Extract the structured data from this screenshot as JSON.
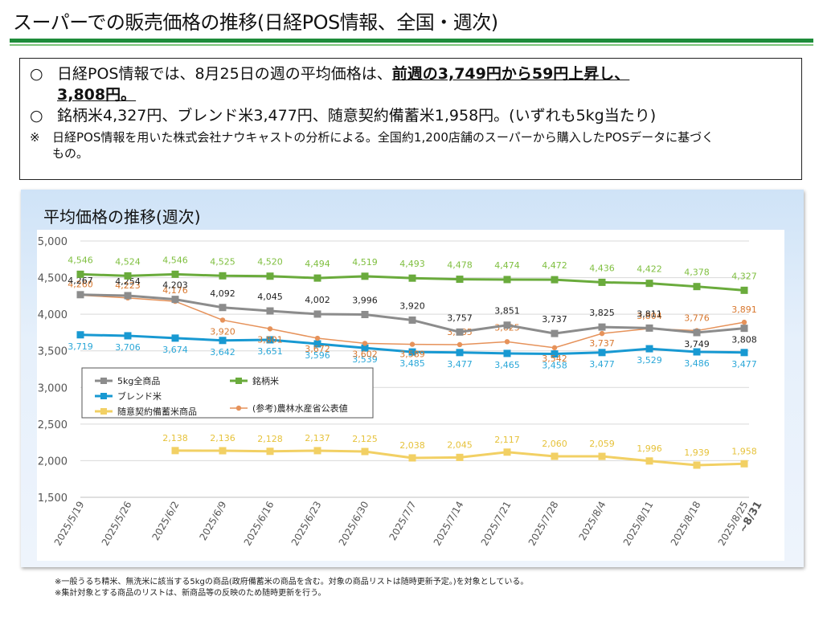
{
  "page": {
    "title": "スーパーでの販売価格の推移(日経POS情報、全国・週次)"
  },
  "summary": {
    "bullet_mark": "○",
    "note_mark": "※",
    "line1_prefix": "日経POS情報では、8月25日の週の平均価格は、",
    "line1_highlight": "前週の3,749円から59円上昇し、",
    "line1_cont": "3,808円。",
    "line2": "銘柄米4,327円、ブレンド米3,477円、随意契約備蓄米1,958円。(いずれも5kg当たり)",
    "note1": "日経POS情報を用いた株式会社ナウキャストの分析による。全国約1,200店舗のスーパーから購入したPOSデータに基づく",
    "note1_cont": "もの。"
  },
  "chart_data": {
    "type": "line",
    "title": "平均価格の推移(週次)",
    "x": [
      "2025/5/19",
      "2025/5/26",
      "2025/6/2",
      "2025/6/9",
      "2025/6/16",
      "2025/6/23",
      "2025/6/30",
      "2025/7/7",
      "2025/7/14",
      "2025/7/21",
      "2025/7/28",
      "2025/8/4",
      "2025/8/11",
      "2025/8/18",
      "2025/8/25"
    ],
    "x_last_suffix": "~8/31",
    "ylim": [
      1500,
      5000
    ],
    "yticks": [
      1500,
      2000,
      2500,
      3000,
      3500,
      4000,
      4500,
      5000
    ],
    "grid": true,
    "legend_position": "left-middle",
    "series": [
      {
        "name": "5kg全商品",
        "color": "#8c8c8c",
        "label_color": "#222222",
        "values": [
          4267,
          4254,
          4203,
          4092,
          4045,
          4002,
          3996,
          3920,
          3757,
          3851,
          3737,
          3825,
          3811,
          3749,
          3808
        ]
      },
      {
        "name": "銘柄米",
        "color": "#6aab3c",
        "label_color": "#7fbf3f",
        "values": [
          4546,
          4524,
          4546,
          4525,
          4520,
          4494,
          4519,
          4493,
          4478,
          4474,
          4472,
          4436,
          4422,
          4378,
          4327
        ]
      },
      {
        "name": "ブレンド米",
        "color": "#1899d2",
        "label_color": "#2aa7d8",
        "values": [
          3719,
          3706,
          3674,
          3642,
          3651,
          3596,
          3539,
          3485,
          3477,
          3465,
          3458,
          3477,
          3529,
          3486,
          3477
        ]
      },
      {
        "name": "(参考)農林水産省公表値",
        "color": "#e6925a",
        "label_color": "#d8772e",
        "values": [
          4260,
          4223,
          4176,
          3920,
          3801,
          3672,
          3602,
          3589,
          3585,
          3625,
          3542,
          3737,
          3804,
          3776,
          3891
        ]
      },
      {
        "name": "随意契約備蓄米商品",
        "color": "#f2d064",
        "label_color": "#e6c23a",
        "values": [
          null,
          null,
          2138,
          2136,
          2128,
          2137,
          2125,
          2038,
          2045,
          2117,
          2060,
          2059,
          1996,
          1939,
          1958
        ]
      }
    ]
  },
  "footnotes": {
    "note1": "※一般うるち精米、無洗米に該当する5kgの商品(政府備蓄米の商品を含む。対象の商品リストは随時更新予定。)を対象としている。",
    "note2": "※集計対象とする商品のリストは、新商品等の反映のため随時更新を行う。"
  }
}
